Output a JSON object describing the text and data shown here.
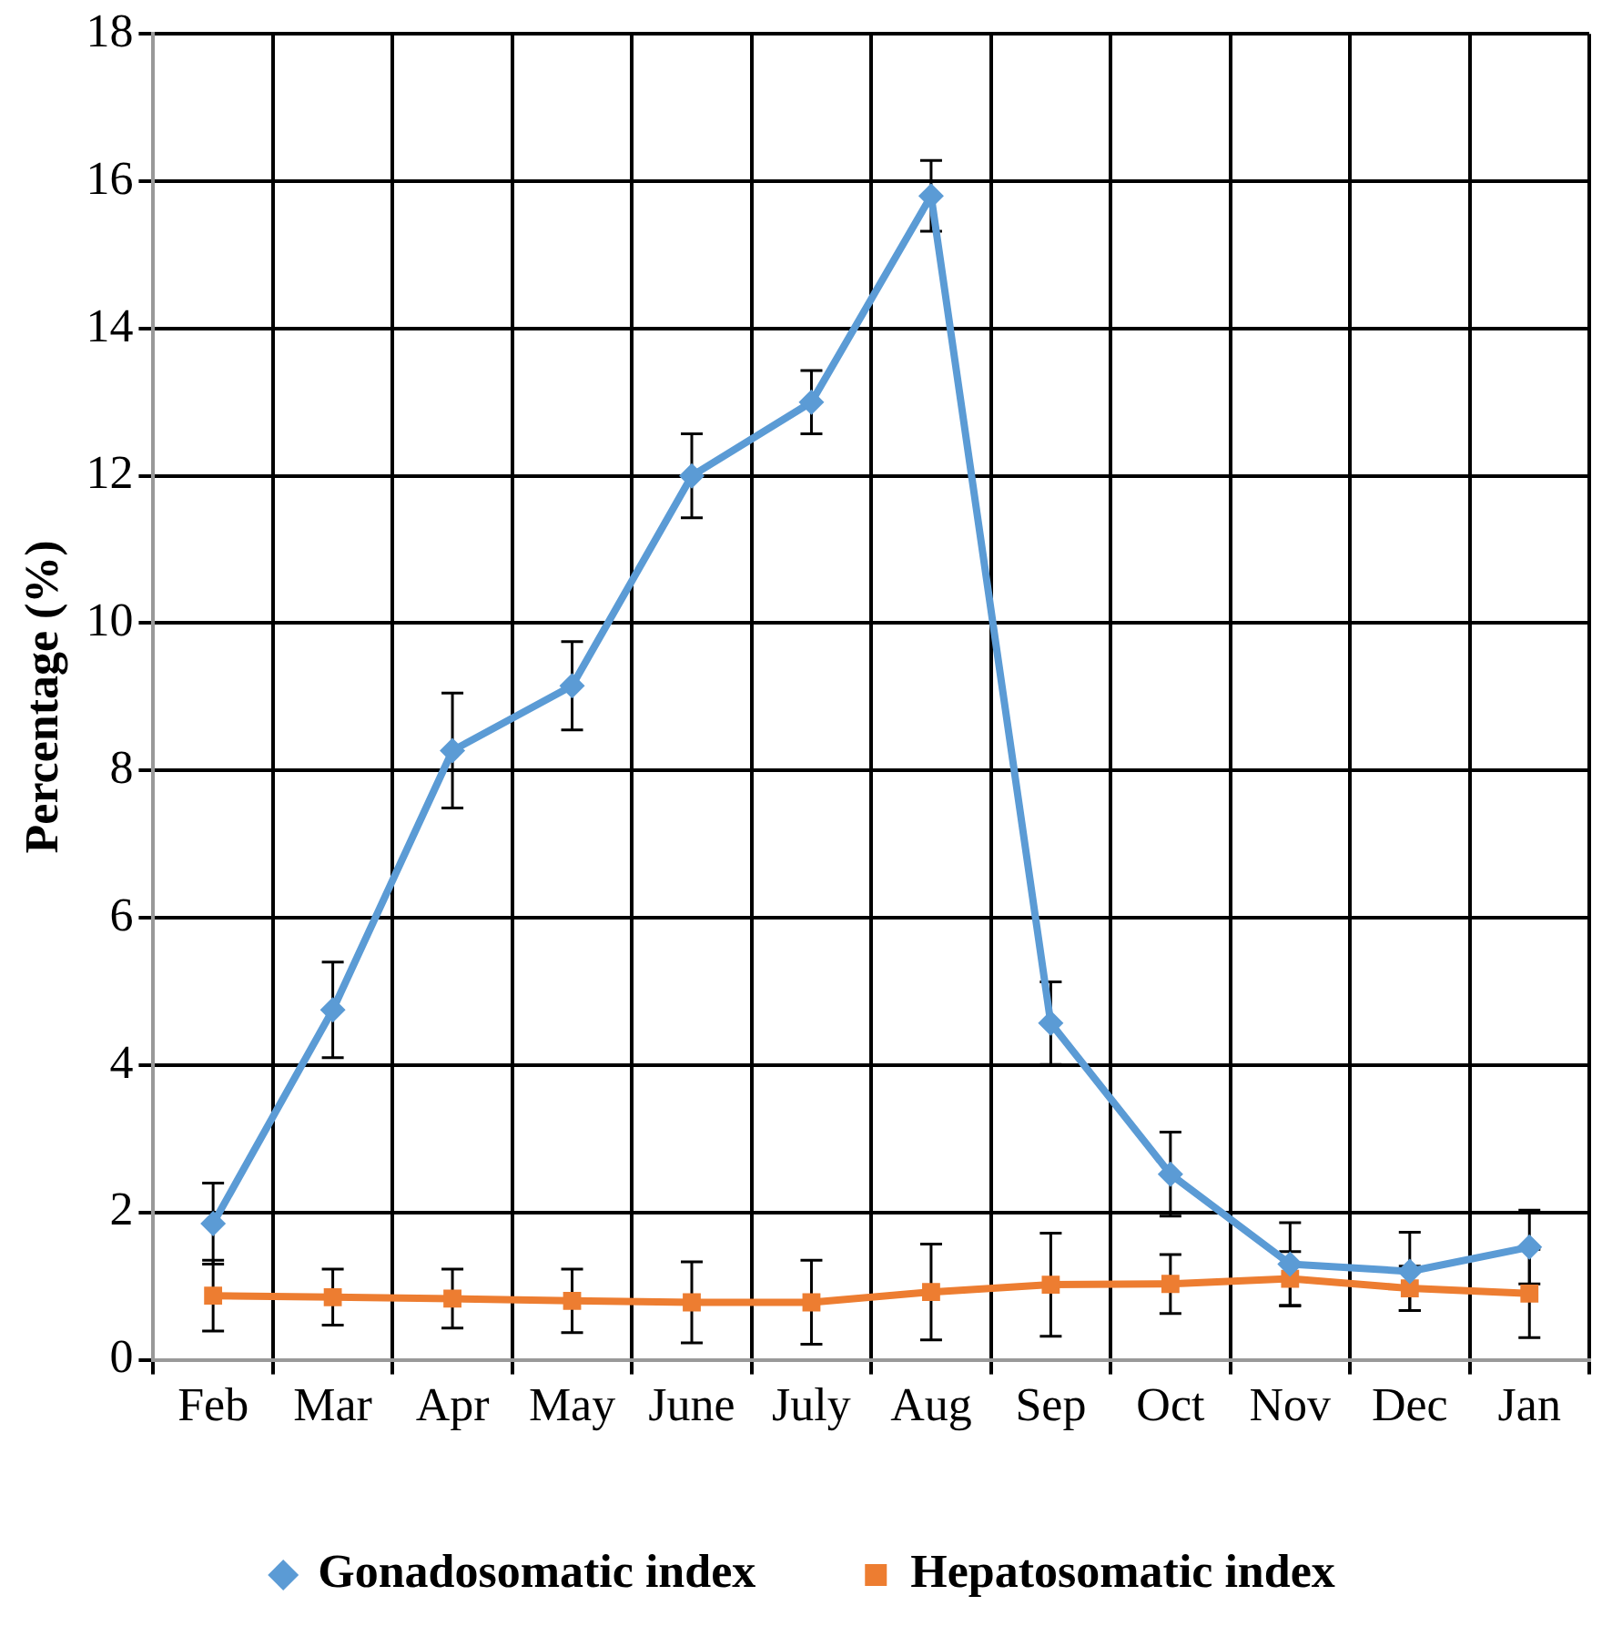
{
  "chart_data": {
    "type": "line",
    "ylabel": "Percentage (%)",
    "categories": [
      "Feb",
      "Mar",
      "Apr",
      "May",
      "June",
      "July",
      "Aug",
      "Sep",
      "Oct",
      "Nov",
      "Dec",
      "Jan"
    ],
    "series": [
      {
        "name": "Gonadosomatic index",
        "color": "#5b9bd5",
        "marker": "diamond",
        "values": [
          1.85,
          4.75,
          8.27,
          9.15,
          12.0,
          13.0,
          15.8,
          4.57,
          2.52,
          1.3,
          1.2,
          1.53
        ],
        "errors": [
          0.55,
          0.65,
          0.78,
          0.6,
          0.57,
          0.43,
          0.48,
          0.56,
          0.57,
          0.56,
          0.53,
          0.5
        ]
      },
      {
        "name": "Hepatosomatic index",
        "color": "#ed7d31",
        "marker": "square",
        "values": [
          0.87,
          0.85,
          0.83,
          0.8,
          0.78,
          0.78,
          0.92,
          1.02,
          1.03,
          1.1,
          0.97,
          0.9
        ],
        "errors": [
          0.48,
          0.38,
          0.4,
          0.43,
          0.55,
          0.57,
          0.65,
          0.7,
          0.4,
          0.37,
          0.3,
          0.6
        ]
      }
    ],
    "ylim": [
      0,
      18
    ],
    "yticks": [
      0,
      2,
      4,
      6,
      8,
      10,
      12,
      14,
      16,
      18
    ],
    "grid": true,
    "legend": "bottom",
    "line_style": "solid"
  }
}
